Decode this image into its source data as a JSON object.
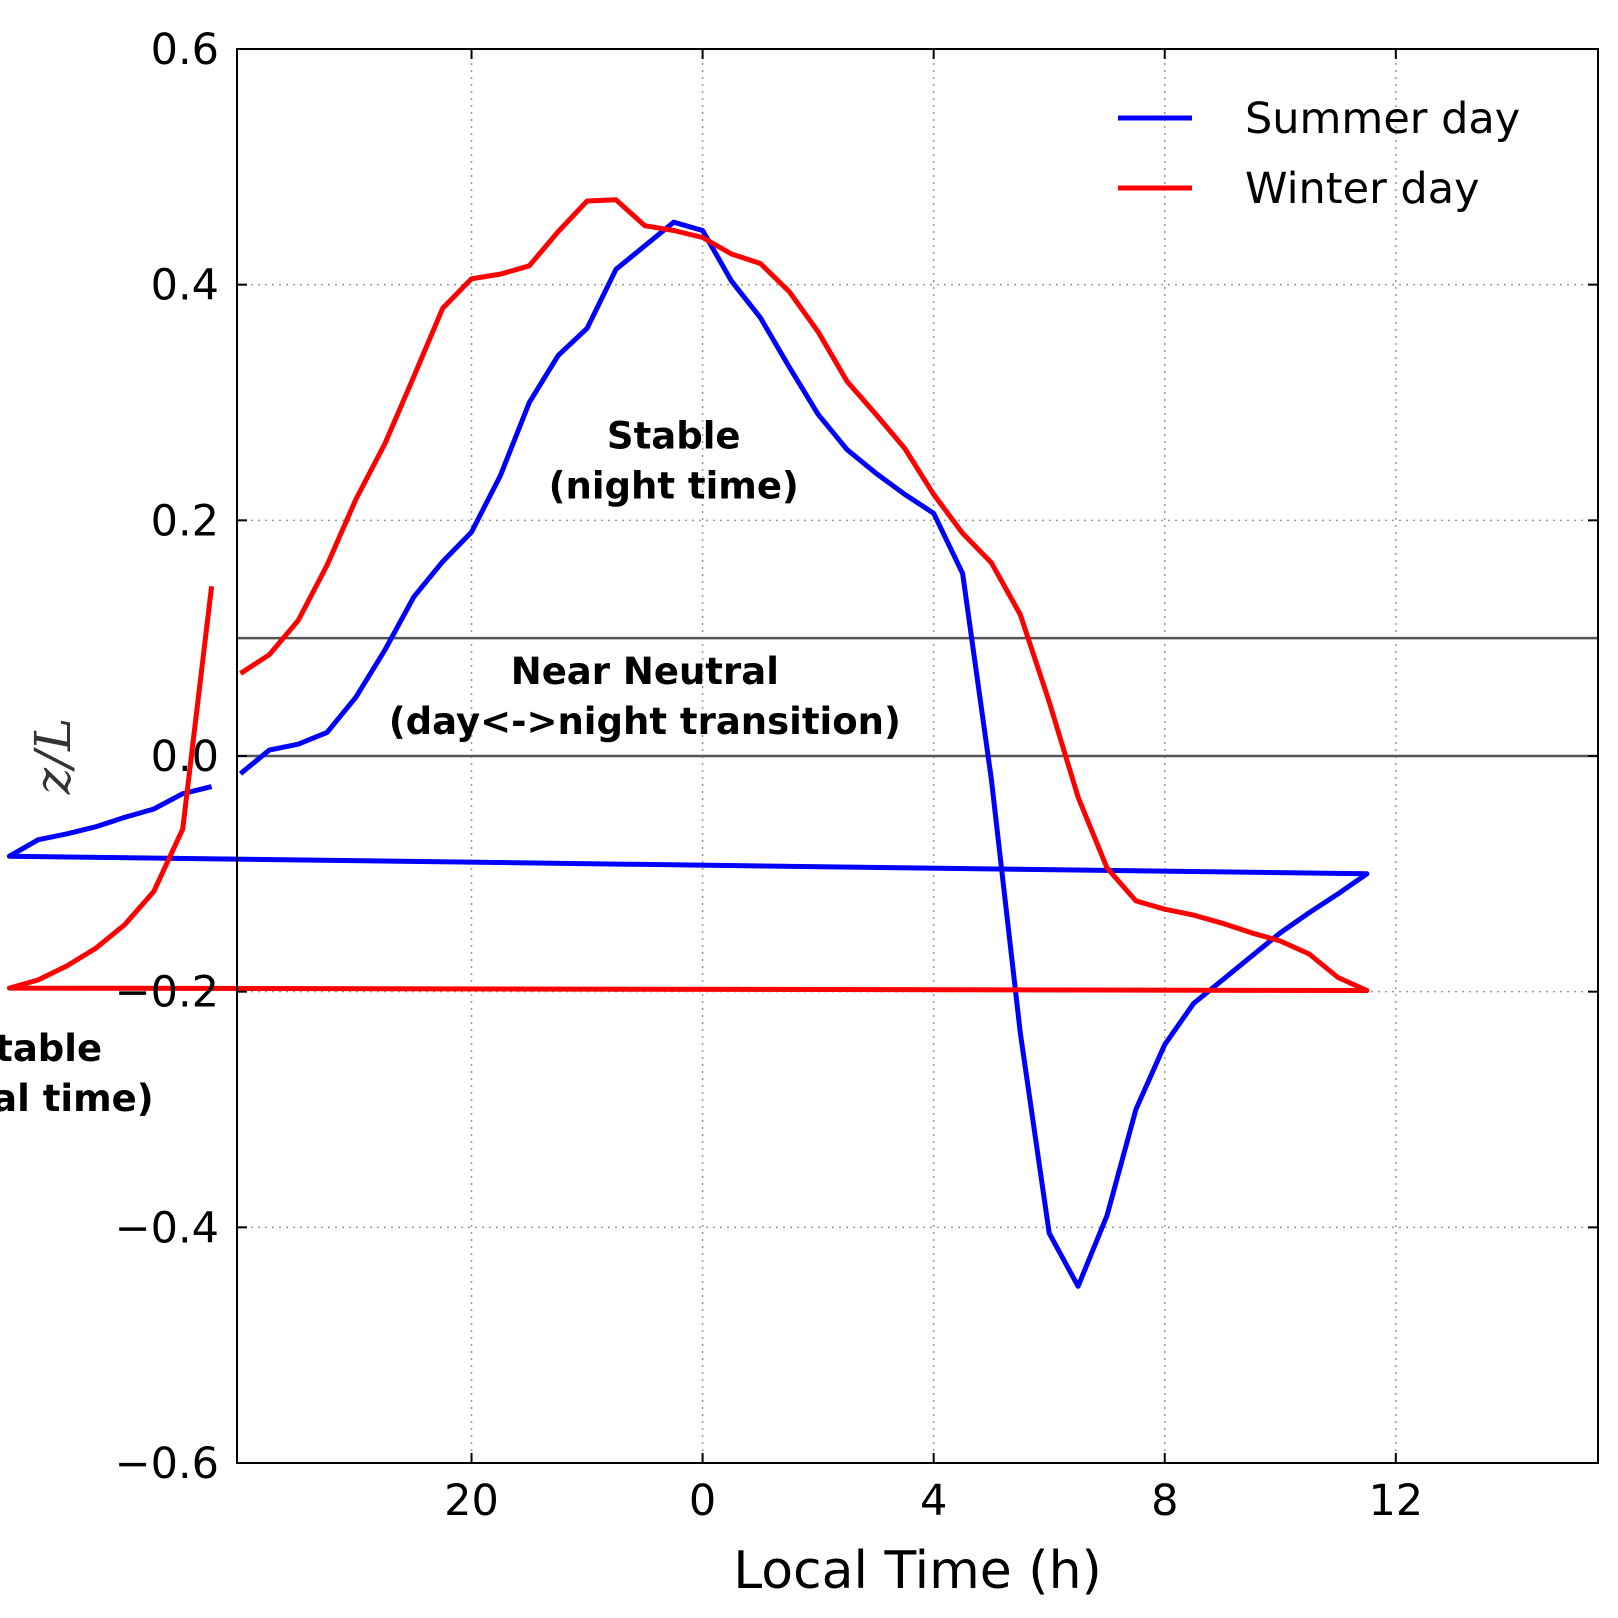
{
  "chart_data": {
    "type": "line",
    "xlabel": "Local Time (h)",
    "ylabel": "z/L",
    "xlim": [
      16.5,
      16.6
    ],
    "ylim": [
      -0.6,
      0.6
    ],
    "x_tick_labels": [
      "20",
      "0",
      "4",
      "8",
      "12"
    ],
    "y_ticks": [
      0.6,
      0.4,
      0.2,
      0.0,
      -0.2,
      -0.4,
      -0.6
    ],
    "y_tick_labels": [
      "0.6",
      "0.4",
      "0.2",
      "0.0",
      "−0.2",
      "−0.4",
      "−0.6"
    ],
    "grid": true,
    "legend_position": "top-right",
    "reference_lines_y": [
      0.1,
      0.0
    ],
    "x": [
      "16:00",
      "16:30",
      "17:00",
      "17:30",
      "18:00",
      "18:30",
      "19:00",
      "19:30",
      "20:00",
      "20:30",
      "21:00",
      "21:30",
      "22:00",
      "22:30",
      "23:00",
      "23:30",
      "00:00",
      "00:30",
      "01:00",
      "01:30",
      "02:00",
      "02:30",
      "03:00",
      "03:30",
      "04:00",
      "04:30",
      "05:00",
      "05:30",
      "06:00",
      "06:30",
      "07:00",
      "07:30",
      "08:00",
      "08:30",
      "09:00",
      "09:30",
      "10:00",
      "10:30",
      "11:00",
      "11:30",
      "12:00",
      "12:30",
      "13:00",
      "13:30",
      "14:00",
      "14:30",
      "15:00",
      "15:30"
    ],
    "series": [
      {
        "name": "Summer day",
        "color": "#0000ff",
        "values": [
          -0.015,
          0.005,
          0.01,
          0.02,
          0.05,
          0.09,
          0.135,
          0.165,
          0.19,
          0.238,
          0.3,
          0.34,
          0.363,
          0.413,
          0.433,
          0.453,
          0.446,
          0.403,
          0.372,
          0.33,
          0.29,
          0.26,
          0.24,
          0.222,
          0.206,
          0.155,
          -0.02,
          -0.235,
          -0.405,
          -0.45,
          -0.39,
          -0.3,
          -0.245,
          -0.21,
          -0.19,
          -0.17,
          -0.15,
          -0.133,
          -0.117,
          -0.1,
          -0.085,
          -0.071,
          -0.066,
          -0.06,
          -0.052,
          -0.045,
          -0.032,
          -0.026
        ]
      },
      {
        "name": "Winter day",
        "color": "#ff0000",
        "values": [
          0.07,
          0.086,
          0.115,
          0.162,
          0.218,
          0.265,
          0.322,
          0.38,
          0.405,
          0.409,
          0.416,
          0.445,
          0.471,
          0.472,
          0.45,
          0.446,
          0.44,
          0.426,
          0.418,
          0.394,
          0.36,
          0.318,
          0.29,
          0.261,
          0.222,
          0.189,
          0.164,
          0.12,
          0.046,
          -0.035,
          -0.095,
          -0.123,
          -0.13,
          -0.135,
          -0.142,
          -0.15,
          -0.157,
          -0.168,
          -0.188,
          -0.199,
          -0.197,
          -0.19,
          -0.178,
          -0.163,
          -0.143,
          -0.115,
          -0.062,
          0.144
        ]
      }
    ],
    "annotations": [
      {
        "lines": [
          "Stable",
          "(night time)"
        ],
        "at": [
          "23:30",
          0.25
        ]
      },
      {
        "lines": [
          "Near Neutral",
          "(day<->night transition)"
        ],
        "at": [
          "23:00",
          0.05
        ]
      },
      {
        "lines": [
          "Unstable",
          "(diurnal time)"
        ],
        "at": [
          "12:00",
          -0.27
        ]
      }
    ]
  }
}
